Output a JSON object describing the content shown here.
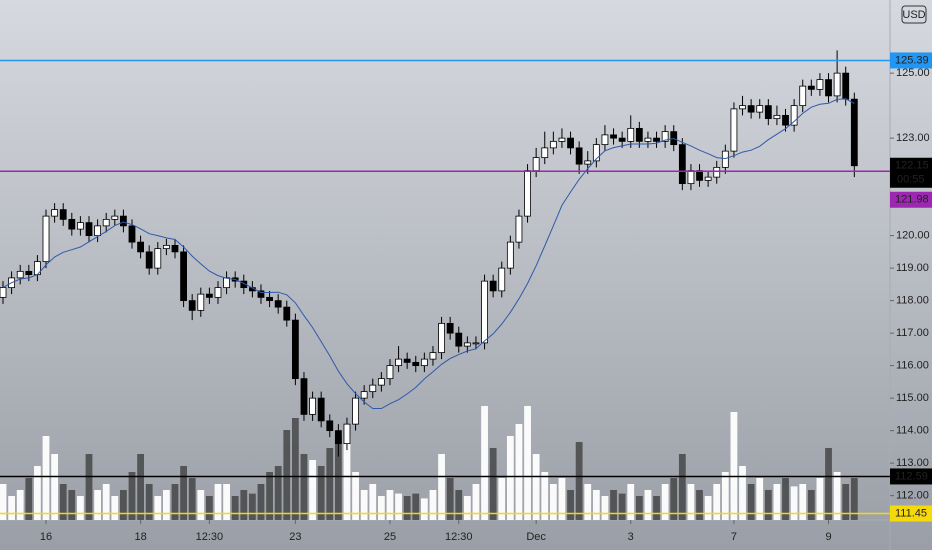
{
  "chart_data": {
    "type": "candlestick",
    "currency": "USD",
    "countdown": "00:55",
    "xlim": [
      -0.35,
      103.15
    ],
    "ylim": [
      111.25,
      127.25
    ],
    "vlim": [
      0,
      100
    ],
    "xticks": [
      {
        "value": 5,
        "label": "16"
      },
      {
        "value": 16,
        "label": "18"
      },
      {
        "value": 24,
        "label": "12:30"
      },
      {
        "value": 34,
        "label": "23"
      },
      {
        "value": 45,
        "label": "25"
      },
      {
        "value": 53,
        "label": "12:30"
      },
      {
        "value": 62,
        "label": "Dec"
      },
      {
        "value": 73,
        "label": "3"
      },
      {
        "value": 85,
        "label": "7"
      },
      {
        "value": 96,
        "label": "9"
      }
    ],
    "yticks": [
      {
        "value": 112,
        "label": "112.00"
      },
      {
        "value": 113,
        "label": "113.00"
      },
      {
        "value": 114,
        "label": "114.00"
      },
      {
        "value": 115,
        "label": "115.00"
      },
      {
        "value": 116,
        "label": "116.00"
      },
      {
        "value": 117,
        "label": "117.00"
      },
      {
        "value": 118,
        "label": "118.00"
      },
      {
        "value": 119,
        "label": "119.00"
      },
      {
        "value": 120,
        "label": "120.00"
      },
      {
        "value": 123,
        "label": "123.00"
      },
      {
        "value": 125,
        "label": "125.00"
      }
    ],
    "price_lines": [
      {
        "value": 125.39,
        "color": "#2196f3"
      },
      {
        "value": 121.98,
        "color": "#9c27b0"
      },
      {
        "value": 112.59,
        "color": "#000000"
      },
      {
        "value": 111.45,
        "color": "#f5d90a"
      }
    ],
    "open": [
      118.1,
      118.4,
      118.7,
      118.9,
      118.8,
      119.2,
      120.6,
      120.8,
      120.5,
      120.2,
      120.4,
      120.0,
      120.3,
      120.5,
      120.6,
      120.3,
      119.8,
      119.5,
      119.0,
      119.6,
      119.7,
      119.5,
      118.0,
      117.7,
      118.2,
      118.1,
      118.4,
      118.7,
      118.6,
      118.4,
      118.3,
      118.1,
      118.0,
      117.8,
      117.4,
      115.6,
      114.5,
      115.0,
      114.3,
      114.0,
      113.6,
      114.2,
      115.0,
      115.2,
      115.4,
      115.6,
      116.0,
      116.2,
      116.1,
      116.0,
      116.2,
      116.4,
      117.3,
      117.0,
      116.6,
      116.7,
      116.7,
      118.6,
      118.3,
      119.0,
      119.8,
      120.6,
      122.0,
      122.4,
      122.7,
      122.9,
      123.0,
      122.7,
      122.2,
      122.3,
      122.8,
      123.1,
      123.0,
      122.9,
      123.3,
      122.9,
      123.0,
      122.9,
      123.2,
      122.8,
      121.6,
      122.0,
      121.7,
      121.8,
      122.1,
      122.6,
      123.9,
      124.0,
      123.8,
      124.0,
      123.6,
      123.7,
      123.4,
      124.0,
      124.6,
      124.5,
      124.8,
      124.3,
      125.0,
      124.2
    ],
    "high": [
      118.6,
      118.9,
      119.1,
      119.1,
      119.4,
      120.8,
      121.0,
      121.0,
      120.7,
      120.6,
      120.6,
      120.5,
      120.7,
      120.8,
      120.8,
      120.5,
      120.0,
      119.7,
      119.8,
      119.9,
      119.9,
      119.7,
      118.2,
      118.4,
      118.4,
      118.6,
      118.9,
      118.9,
      118.8,
      118.6,
      118.5,
      118.3,
      118.2,
      118.0,
      117.6,
      115.8,
      115.2,
      115.2,
      114.5,
      114.2,
      114.4,
      115.2,
      115.4,
      115.6,
      115.8,
      116.2,
      116.6,
      116.4,
      116.3,
      116.4,
      116.6,
      117.5,
      117.5,
      117.2,
      116.9,
      116.9,
      118.8,
      118.8,
      119.2,
      120.0,
      120.8,
      122.2,
      122.7,
      123.2,
      123.2,
      123.3,
      123.2,
      122.9,
      122.6,
      123.0,
      123.4,
      123.3,
      123.2,
      123.7,
      123.5,
      123.2,
      123.2,
      123.4,
      123.4,
      123.0,
      122.2,
      122.2,
      122.0,
      122.3,
      122.8,
      124.1,
      124.3,
      124.2,
      124.2,
      124.2,
      124.0,
      123.9,
      124.2,
      124.8,
      124.8,
      125.0,
      125.0,
      125.7,
      125.2,
      124.4
    ],
    "low": [
      117.9,
      118.2,
      118.5,
      118.6,
      118.6,
      119.0,
      120.4,
      120.3,
      120.0,
      120.0,
      119.8,
      119.8,
      120.1,
      120.3,
      120.1,
      119.6,
      119.3,
      118.8,
      118.8,
      119.4,
      119.3,
      117.8,
      117.4,
      117.5,
      117.9,
      117.9,
      118.2,
      118.4,
      118.2,
      118.1,
      117.9,
      117.8,
      117.6,
      117.2,
      115.4,
      114.3,
      114.3,
      114.1,
      113.8,
      113.2,
      113.4,
      114.0,
      114.8,
      115.0,
      115.2,
      115.4,
      115.8,
      115.9,
      115.8,
      115.8,
      116.0,
      116.2,
      116.8,
      116.4,
      116.4,
      116.5,
      116.5,
      118.1,
      118.1,
      118.8,
      119.6,
      120.4,
      121.8,
      122.2,
      122.5,
      122.7,
      122.5,
      121.9,
      121.9,
      122.1,
      122.6,
      122.8,
      122.7,
      122.7,
      122.7,
      122.7,
      122.7,
      122.7,
      122.6,
      121.4,
      121.4,
      121.5,
      121.5,
      121.6,
      121.9,
      122.4,
      123.7,
      123.6,
      123.6,
      123.4,
      123.4,
      123.2,
      123.2,
      123.8,
      124.3,
      124.3,
      124.1,
      124.1,
      124.0,
      121.8
    ],
    "close": [
      118.4,
      118.7,
      118.9,
      118.8,
      119.2,
      120.6,
      120.8,
      120.5,
      120.2,
      120.4,
      120.0,
      120.3,
      120.5,
      120.6,
      120.3,
      119.8,
      119.5,
      119.0,
      119.6,
      119.7,
      119.5,
      118.0,
      117.7,
      118.2,
      118.1,
      118.4,
      118.7,
      118.6,
      118.4,
      118.3,
      118.1,
      118.0,
      117.8,
      117.4,
      115.6,
      114.5,
      115.0,
      114.3,
      114.0,
      113.6,
      114.2,
      115.0,
      115.2,
      115.4,
      115.6,
      116.0,
      116.2,
      116.1,
      116.0,
      116.2,
      116.4,
      117.3,
      117.0,
      116.6,
      116.7,
      116.7,
      118.6,
      118.3,
      119.0,
      119.8,
      120.6,
      122.0,
      122.4,
      122.7,
      122.9,
      123.0,
      122.7,
      122.2,
      122.3,
      122.8,
      123.1,
      123.0,
      122.9,
      123.3,
      122.9,
      123.0,
      122.9,
      123.2,
      122.8,
      121.6,
      122.0,
      121.7,
      121.8,
      122.1,
      122.6,
      123.9,
      124.0,
      123.8,
      124.0,
      123.6,
      123.7,
      123.4,
      124.0,
      124.6,
      124.5,
      124.8,
      124.3,
      125.0,
      124.2,
      122.15
    ],
    "volume": [
      30,
      20,
      25,
      35,
      45,
      70,
      55,
      30,
      25,
      20,
      55,
      25,
      30,
      20,
      25,
      40,
      55,
      30,
      20,
      25,
      30,
      45,
      35,
      25,
      20,
      30,
      30,
      20,
      25,
      22,
      30,
      40,
      45,
      75,
      85,
      55,
      50,
      45,
      60,
      70,
      70,
      40,
      25,
      30,
      20,
      25,
      22,
      20,
      22,
      18,
      25,
      55,
      35,
      25,
      20,
      30,
      95,
      60,
      35,
      70,
      80,
      95,
      55,
      40,
      30,
      35,
      25,
      65,
      30,
      25,
      20,
      25,
      22,
      30,
      20,
      25,
      20,
      30,
      35,
      55,
      30,
      25,
      20,
      30,
      40,
      90,
      45,
      30,
      35,
      25,
      30,
      35,
      28,
      30,
      25,
      35,
      60,
      40,
      30,
      35
    ]
  }
}
